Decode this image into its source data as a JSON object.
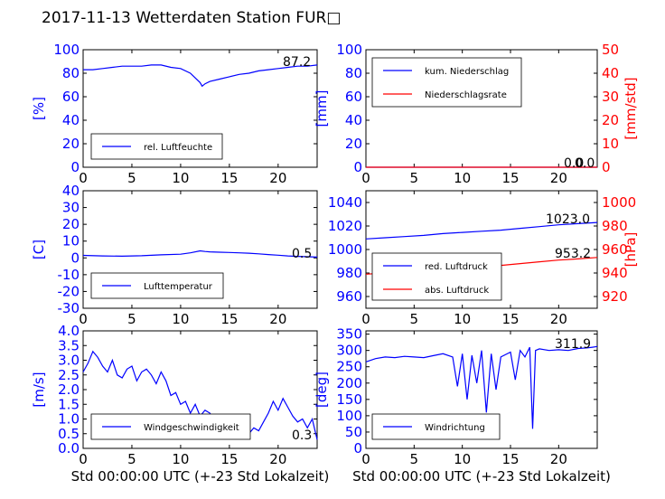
{
  "figure_title": "2017-11-13 Wetterdaten Station FUR□",
  "xlabel": "Std 00:00:00 UTC (+-23 Std Lokalzeit)",
  "x_ticks": [
    0,
    5,
    10,
    15,
    20
  ],
  "colors": {
    "primary": "#0000ff",
    "secondary": "#ff0000",
    "axis": "#000000"
  },
  "chart_data": [
    {
      "type": "line",
      "panel": "humidity",
      "xlim": [
        0,
        24
      ],
      "ylabel": "[%]",
      "ylim": [
        0,
        100
      ],
      "yticks": [
        0,
        20,
        40,
        60,
        80,
        100
      ],
      "last_value": "87.2",
      "legend_loc": "lower-left",
      "series": [
        {
          "name": "rel. Luftfeuchte",
          "color": "#0000ff",
          "x": [
            0,
            1,
            2,
            3,
            4,
            5,
            6,
            7,
            8,
            9,
            10,
            11,
            11.5,
            12,
            12.2,
            12.5,
            13,
            14,
            15,
            16,
            17,
            18,
            19,
            20,
            21,
            22,
            23,
            24
          ],
          "y": [
            83,
            83,
            84,
            85,
            86,
            86,
            86,
            87,
            87,
            85,
            84,
            80,
            76,
            72,
            69,
            71,
            73,
            75,
            77,
            79,
            80,
            82,
            83,
            84,
            85,
            86,
            86,
            87
          ]
        }
      ]
    },
    {
      "type": "line",
      "panel": "precipitation",
      "xlim": [
        0,
        24
      ],
      "ylabel": "[mm]",
      "ylim": [
        0,
        100
      ],
      "yticks": [
        0,
        20,
        40,
        60,
        80,
        100
      ],
      "ylabel2": "[mm/std]",
      "ylim2": [
        0,
        50
      ],
      "yticks2": [
        0,
        10,
        20,
        30,
        40,
        50
      ],
      "last_value": "0.0",
      "last_value2": "0.0",
      "legend_loc": "upper-left",
      "series": [
        {
          "name": "kum. Niederschlag",
          "axis": "left",
          "color": "#0000ff",
          "x": [
            0,
            24
          ],
          "y": [
            0,
            0
          ]
        },
        {
          "name": "Niederschlagsrate",
          "axis": "right",
          "color": "#ff0000",
          "x": [
            0,
            24
          ],
          "y": [
            0,
            0
          ]
        }
      ]
    },
    {
      "type": "line",
      "panel": "temperature",
      "xlim": [
        0,
        24
      ],
      "ylabel": "[C]",
      "ylim": [
        -30,
        40
      ],
      "yticks": [
        -30,
        -20,
        -10,
        0,
        10,
        20,
        30,
        40
      ],
      "last_value": "0.5",
      "legend_loc": "lower-left",
      "series": [
        {
          "name": "Lufttemperatur",
          "color": "#0000ff",
          "x": [
            0,
            2,
            4,
            6,
            8,
            10,
            11,
            12,
            12.5,
            13,
            14,
            15,
            16,
            17,
            18,
            19,
            20,
            21,
            22,
            23,
            24
          ],
          "y": [
            1.5,
            1.2,
            1.0,
            1.3,
            1.8,
            2.2,
            3.0,
            4.2,
            3.8,
            3.6,
            3.4,
            3.2,
            3.0,
            2.8,
            2.4,
            2.0,
            1.6,
            1.2,
            0.9,
            0.7,
            0.5
          ]
        }
      ]
    },
    {
      "type": "line",
      "panel": "pressure",
      "xlim": [
        0,
        24
      ],
      "ylabel": "",
      "ylim": [
        950,
        1050
      ],
      "yticks": [
        960,
        980,
        1000,
        1020,
        1040
      ],
      "ylabel2": "[hPa]",
      "ylim2": [
        910,
        1010
      ],
      "yticks2": [
        920,
        940,
        960,
        980,
        1000
      ],
      "last_value": "1023.0",
      "last_value2": "953.2",
      "legend_loc": "lower-left",
      "series": [
        {
          "name": "red. Luftdruck",
          "axis": "left",
          "color": "#0000ff",
          "x": [
            0,
            2,
            4,
            6,
            8,
            10,
            12,
            14,
            16,
            18,
            20,
            22,
            24
          ],
          "y": [
            1009,
            1010,
            1011,
            1012,
            1013.5,
            1014.5,
            1015.5,
            1016.5,
            1018,
            1019.5,
            1021,
            1022,
            1023
          ]
        },
        {
          "name": "abs. Luftdruck",
          "axis": "right",
          "color": "#ff0000",
          "x": [
            0,
            2,
            4,
            6,
            8,
            10,
            12,
            14,
            16,
            18,
            20,
            22,
            24
          ],
          "y": [
            939,
            940,
            941,
            942,
            943,
            944.5,
            945.5,
            946.5,
            948,
            949.5,
            951,
            952,
            953.2
          ]
        }
      ]
    },
    {
      "type": "line",
      "panel": "wind-speed",
      "xlim": [
        0,
        24
      ],
      "ylabel": "[m/s]",
      "ylim": [
        0,
        4
      ],
      "yticks": [
        "0.0",
        "0.5",
        "1.0",
        "1.5",
        "2.0",
        "2.5",
        "3.0",
        "3.5",
        "4.0"
      ],
      "last_value": "0.3",
      "legend_loc": "lower-left",
      "series": [
        {
          "name": "Windgeschwindigkeit",
          "color": "#0000ff",
          "x": [
            0,
            0.5,
            1,
            1.5,
            2,
            2.5,
            3,
            3.5,
            4,
            4.5,
            5,
            5.5,
            6,
            6.5,
            7,
            7.5,
            8,
            8.5,
            9,
            9.5,
            10,
            10.5,
            11,
            11.5,
            12,
            12.5,
            13,
            13.5,
            14,
            14.5,
            15,
            15.5,
            16,
            16.5,
            17,
            17.5,
            18,
            18.5,
            19,
            19.5,
            20,
            20.5,
            21,
            21.5,
            22,
            22.5,
            23,
            23.5,
            24
          ],
          "y": [
            2.6,
            2.9,
            3.3,
            3.1,
            2.8,
            2.6,
            3.0,
            2.5,
            2.4,
            2.7,
            2.8,
            2.3,
            2.6,
            2.7,
            2.5,
            2.2,
            2.6,
            2.3,
            1.8,
            1.9,
            1.5,
            1.6,
            1.2,
            1.5,
            1.1,
            1.3,
            1.2,
            0.9,
            1.1,
            1.0,
            0.8,
            0.7,
            0.9,
            0.6,
            0.5,
            0.7,
            0.6,
            0.9,
            1.2,
            1.6,
            1.3,
            1.7,
            1.4,
            1.1,
            0.9,
            1.0,
            0.7,
            1.0,
            0.3
          ]
        }
      ]
    },
    {
      "type": "line",
      "panel": "wind-direction",
      "xlim": [
        0,
        24
      ],
      "ylabel": "[deg]",
      "ylim": [
        0,
        360
      ],
      "yticks": [
        0,
        50,
        100,
        150,
        200,
        250,
        300,
        350
      ],
      "last_value": "311.9",
      "legend_loc": "lower-left",
      "series": [
        {
          "name": "Windrichtung",
          "color": "#0000ff",
          "x": [
            0,
            1,
            2,
            3,
            4,
            5,
            6,
            7,
            8,
            9,
            9.5,
            10,
            10.5,
            11,
            11.5,
            12,
            12.5,
            13,
            13.5,
            14,
            15,
            15.5,
            16,
            16.5,
            17,
            17.3,
            17.6,
            18,
            19,
            20,
            21,
            22,
            23,
            23.5,
            24
          ],
          "y": [
            265,
            275,
            280,
            278,
            282,
            280,
            278,
            284,
            290,
            280,
            190,
            290,
            150,
            285,
            200,
            300,
            110,
            290,
            180,
            280,
            295,
            210,
            300,
            280,
            310,
            60,
            300,
            305,
            300,
            302,
            300,
            306,
            308,
            310,
            312
          ]
        }
      ]
    }
  ]
}
